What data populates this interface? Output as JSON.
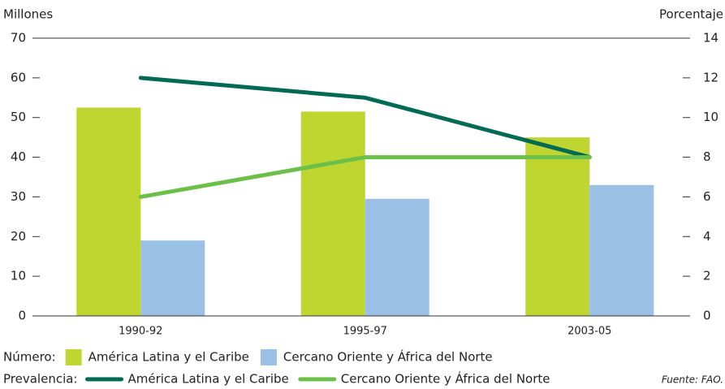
{
  "chart_data": {
    "type": "bar",
    "y_label": "Millones",
    "y2_label": "Porcentaje",
    "categories": [
      "1990-92",
      "1995-97",
      "2003-05"
    ],
    "series": [
      {
        "name": "América Latina y el Caribe",
        "type": "bar",
        "color": "#bed62f",
        "values": [
          52.5,
          51.5,
          45
        ]
      },
      {
        "name": "Cercano Oriente y África del Norte",
        "type": "bar",
        "color": "#9bc0e6",
        "values": [
          19,
          29.5,
          33
        ]
      },
      {
        "name": "América Latina y el Caribe",
        "type": "line",
        "axis": "y2",
        "color": "#006a55",
        "values": [
          12,
          11,
          8
        ]
      },
      {
        "name": "Cercano Oriente y África del Norte",
        "type": "line",
        "axis": "y2",
        "color": "#6cc04a",
        "values": [
          6,
          8,
          8
        ]
      }
    ],
    "legend_groups": {
      "bar": "Número:",
      "line": "Prevalencia:"
    },
    "source": "Fuente: FAO.",
    "ylim": [
      0,
      70
    ],
    "yticks": [
      0,
      10,
      20,
      30,
      40,
      50,
      60,
      70
    ],
    "y2lim": [
      0,
      14
    ],
    "y2ticks": [
      0,
      2,
      4,
      6,
      8,
      10,
      12,
      14
    ]
  }
}
